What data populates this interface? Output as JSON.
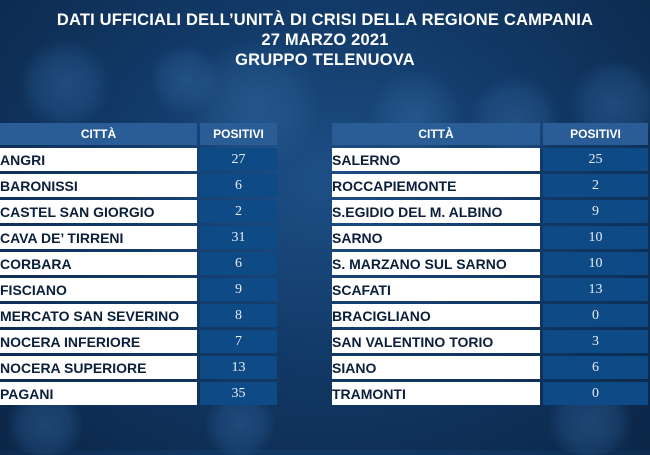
{
  "header": {
    "line1": "DATI UFFICIALI DELL’UNITÀ DI CRISI DELLA REGIONE CAMPANIA",
    "line2": "27 MARZO 2021",
    "line3": "GRUPPO TELENUOVA"
  },
  "columns": {
    "city": "CITTÀ",
    "positive": "POSITIVI"
  },
  "left_table": [
    {
      "city": "ANGRI",
      "positive": "27"
    },
    {
      "city": "BARONISSI",
      "positive": "6"
    },
    {
      "city": "CASTEL SAN GIORGIO",
      "positive": "2"
    },
    {
      "city": "CAVA DE’ TIRRENI",
      "positive": "31"
    },
    {
      "city": "CORBARA",
      "positive": "6"
    },
    {
      "city": "FISCIANO",
      "positive": "9"
    },
    {
      "city": "MERCATO SAN SEVERINO",
      "positive": "8"
    },
    {
      "city": "NOCERA INFERIORE",
      "positive": "7"
    },
    {
      "city": "NOCERA SUPERIORE",
      "positive": "13"
    },
    {
      "city": "PAGANI",
      "positive": "35"
    }
  ],
  "right_table": [
    {
      "city": "SALERNO",
      "positive": "25"
    },
    {
      "city": "ROCCAPIEMONTE",
      "positive": "2"
    },
    {
      "city": "S.EGIDIO DEL M. ALBINO",
      "positive": "9"
    },
    {
      "city": "SARNO",
      "positive": "10"
    },
    {
      "city": "S. MARZANO SUL SARNO",
      "positive": "10"
    },
    {
      "city": "SCAFATI",
      "positive": "13"
    },
    {
      "city": "BRACIGLIANO",
      "positive": "0"
    },
    {
      "city": "SAN VALENTINO TORIO",
      "positive": "3"
    },
    {
      "city": "SIANO",
      "positive": "6"
    },
    {
      "city": "TRAMONTI",
      "positive": "0"
    }
  ]
}
